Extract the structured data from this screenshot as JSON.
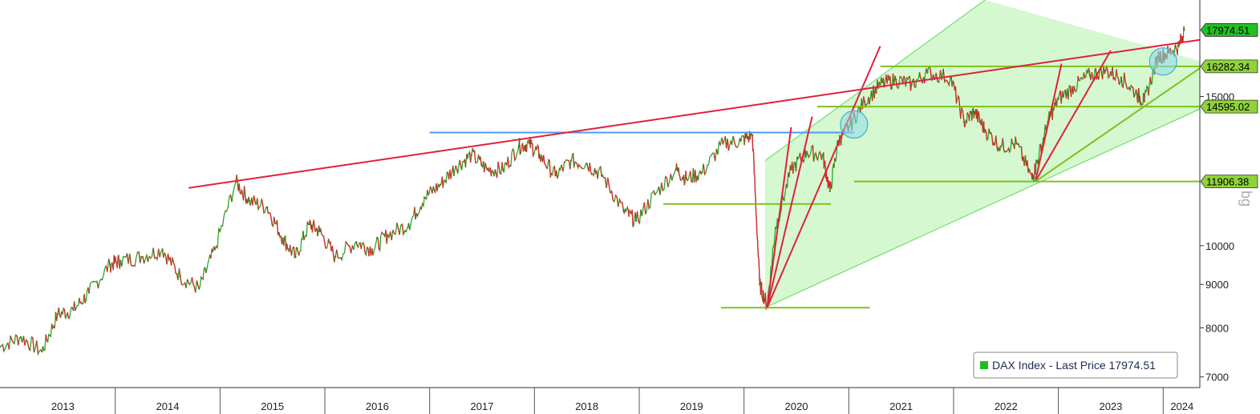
{
  "chart_data": {
    "type": "line",
    "scale": "log",
    "ylim": [
      6800,
      19500
    ],
    "xlim": [
      2012.9,
      2024.35
    ],
    "y_ticks": [
      7000,
      8000,
      9000,
      10000,
      15000
    ],
    "x_ticks": [
      {
        "label": "2013",
        "at": 2013.5
      },
      {
        "label": "2014",
        "at": 2014.5
      },
      {
        "label": "2015",
        "at": 2015.5
      },
      {
        "label": "2016",
        "at": 2016.5
      },
      {
        "label": "2017",
        "at": 2017.5
      },
      {
        "label": "2018",
        "at": 2018.5
      },
      {
        "label": "2019",
        "at": 2019.5
      },
      {
        "label": "2020",
        "at": 2020.5
      },
      {
        "label": "2021",
        "at": 2021.5
      },
      {
        "label": "2022",
        "at": 2022.5
      },
      {
        "label": "2023",
        "at": 2023.5
      },
      {
        "label": "2024",
        "at": 2024.18
      }
    ],
    "year_boundaries": [
      2014,
      2015,
      2016,
      2017,
      2018,
      2019,
      2020,
      2021,
      2022,
      2023,
      2024
    ],
    "axis_title": "bg",
    "legend": {
      "label": "DAX Index - Last Price 17974.51",
      "position": "bottom-right",
      "color": "#22bb22"
    },
    "series": [
      {
        "name": "DAX Index",
        "x": [
          2012.9,
          2013.1,
          2013.3,
          2013.45,
          2013.6,
          2013.75,
          2013.95,
          2014.05,
          2014.25,
          2014.45,
          2014.62,
          2014.8,
          2014.95,
          2015.15,
          2015.28,
          2015.45,
          2015.6,
          2015.72,
          2015.85,
          2015.95,
          2016.1,
          2016.3,
          2016.45,
          2016.6,
          2016.8,
          2016.95,
          2017.1,
          2017.25,
          2017.4,
          2017.55,
          2017.7,
          2017.85,
          2017.95,
          2018.05,
          2018.2,
          2018.35,
          2018.5,
          2018.65,
          2018.85,
          2018.97,
          2019.15,
          2019.35,
          2019.45,
          2019.6,
          2019.8,
          2019.97,
          2020.08,
          2020.15,
          2020.22,
          2020.3,
          2020.45,
          2020.6,
          2020.75,
          2020.82,
          2020.9,
          2021.0,
          2021.15,
          2021.3,
          2021.45,
          2021.6,
          2021.75,
          2021.97,
          2022.1,
          2022.2,
          2022.3,
          2022.45,
          2022.6,
          2022.75,
          2022.8,
          2022.9,
          2023.0,
          2023.15,
          2023.3,
          2023.45,
          2023.6,
          2023.75,
          2023.82,
          2023.95,
          2024.05,
          2024.15,
          2024.2
        ],
        "values": [
          7600,
          7800,
          7500,
          8300,
          8400,
          8800,
          9500,
          9600,
          9700,
          9900,
          9200,
          8900,
          9900,
          11900,
          11300,
          11100,
          10200,
          9700,
          10600,
          10400,
          9700,
          10100,
          9900,
          10300,
          10600,
          11400,
          11800,
          12400,
          12800,
          12300,
          12300,
          13100,
          13200,
          12800,
          12100,
          12600,
          12500,
          12100,
          11000,
          10700,
          11500,
          12300,
          12000,
          12200,
          13200,
          13300,
          13500,
          9000,
          8500,
          10500,
          12300,
          12900,
          12800,
          11600,
          13300,
          13800,
          14800,
          15500,
          15700,
          15500,
          16000,
          15800,
          14000,
          14400,
          13700,
          13100,
          13200,
          12000,
          12600,
          14000,
          14900,
          15400,
          15900,
          16100,
          15800,
          15100,
          14800,
          16700,
          16900,
          17200,
          17974.51
        ]
      }
    ],
    "levels": [
      {
        "label": "17974.51",
        "value": 17974.51,
        "tag_color": "#22c022"
      },
      {
        "label": "16282.34",
        "value": 16282.34,
        "tag_color": "#8fd23a"
      },
      {
        "label": "14595.02",
        "value": 14595.02,
        "tag_color": "#8fd23a"
      },
      {
        "label": "11906.38",
        "value": 11906.38,
        "tag_color": "#8fd23a"
      }
    ],
    "horizontal_lines": [
      {
        "x1": 2019.23,
        "x2": 2020.83,
        "value": 11200,
        "color": "#7cc21e"
      },
      {
        "x1": 2019.78,
        "x2": 2021.2,
        "value": 8450,
        "color": "#7cc21e"
      },
      {
        "x1": 2020.7,
        "x2": 2024.35,
        "value": 14595.02,
        "color": "#7cc21e"
      },
      {
        "x1": 2021.3,
        "x2": 2024.35,
        "value": 16282.34,
        "color": "#7cc21e"
      },
      {
        "x1": 2021.05,
        "x2": 2024.35,
        "value": 11906.38,
        "color": "#7cc21e"
      },
      {
        "x1": 2017.0,
        "x2": 2021.05,
        "value": 13600,
        "color": "#4a9cf0"
      }
    ],
    "trend_lines": [
      {
        "x1": 2014.7,
        "v1": 11700,
        "x2": 2024.35,
        "v2": 17500,
        "color": "#e0203f"
      },
      {
        "x1": 2020.22,
        "v1": 8450,
        "x2": 2021.3,
        "v2": 17200,
        "color": "#e0203f"
      },
      {
        "x1": 2020.22,
        "v1": 8450,
        "x2": 2020.45,
        "v2": 13800,
        "color": "#e0203f"
      },
      {
        "x1": 2020.22,
        "v1": 8450,
        "x2": 2020.65,
        "v2": 14200,
        "color": "#e0203f"
      },
      {
        "x1": 2022.78,
        "v1": 11906.38,
        "x2": 2023.03,
        "v2": 16400,
        "color": "#e0203f"
      },
      {
        "x1": 2022.78,
        "v1": 11906.38,
        "x2": 2023.5,
        "v2": 17000,
        "color": "#e0203f"
      },
      {
        "x1": 2022.78,
        "v1": 11906.38,
        "x2": 2024.35,
        "v2": 16200,
        "color": "#7cc21e"
      }
    ],
    "channel": {
      "color": "#c8f5c0",
      "edge_color": "#57dd57",
      "upper": [
        [
          2020.2,
          12600
        ],
        [
          2022.3,
          19500
        ]
      ],
      "lower": [
        [
          2020.2,
          8450
        ],
        [
          2024.35,
          14500
        ]
      ]
    },
    "highlights": [
      {
        "x": 2021.05,
        "value": 13900
      },
      {
        "x": 2024.0,
        "value": 16500
      }
    ]
  }
}
